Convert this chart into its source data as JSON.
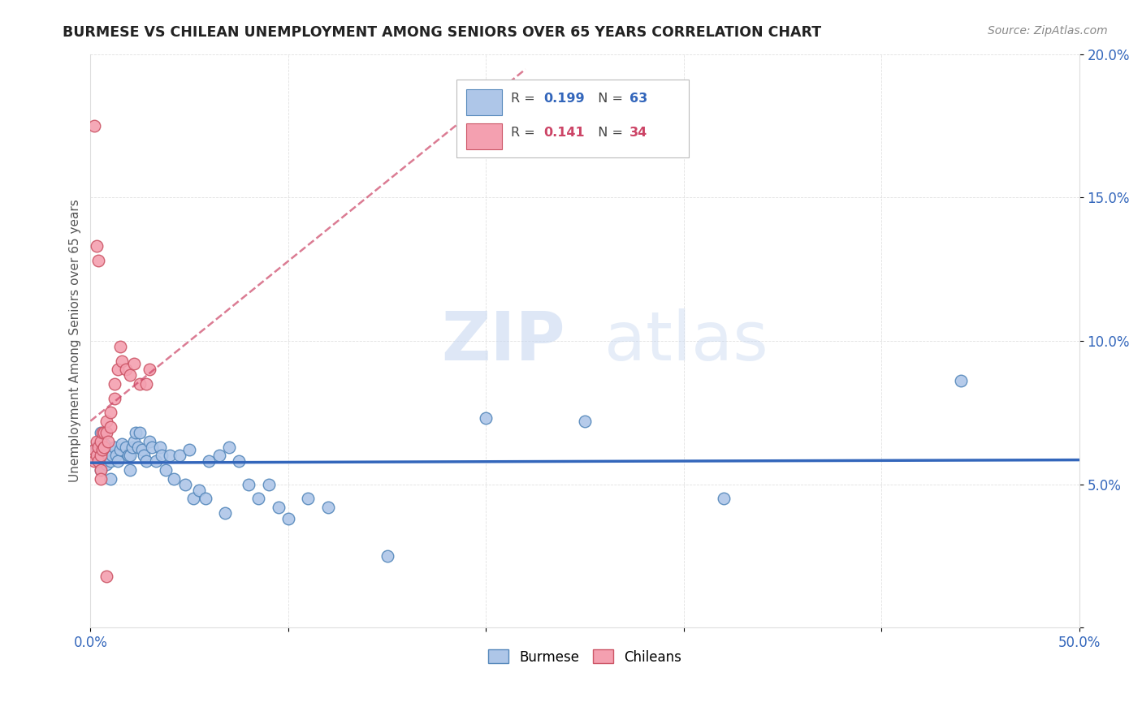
{
  "title": "BURMESE VS CHILEAN UNEMPLOYMENT AMONG SENIORS OVER 65 YEARS CORRELATION CHART",
  "source": "Source: ZipAtlas.com",
  "ylabel": "Unemployment Among Seniors over 65 years",
  "xlim": [
    0.0,
    0.5
  ],
  "ylim": [
    0.0,
    0.2
  ],
  "xticks": [
    0.0,
    0.1,
    0.2,
    0.3,
    0.4,
    0.5
  ],
  "xticklabels": [
    "0.0%",
    "",
    "",
    "",
    "",
    "50.0%"
  ],
  "yticks": [
    0.0,
    0.05,
    0.1,
    0.15,
    0.2
  ],
  "yticklabels": [
    "",
    "5.0%",
    "10.0%",
    "15.0%",
    "20.0%"
  ],
  "burmese_color": "#aec6e8",
  "chilean_color": "#f4a0b0",
  "burmese_edge": "#5588bb",
  "chilean_edge": "#cc5566",
  "line_burmese": "#3366bb",
  "line_chilean": "#cc4466",
  "R_burmese": 0.199,
  "N_burmese": 63,
  "R_chilean": 0.141,
  "N_chilean": 34,
  "watermark_zip": "ZIP",
  "watermark_atlas": "atlas",
  "burmese_x": [
    0.003,
    0.004,
    0.005,
    0.005,
    0.005,
    0.006,
    0.007,
    0.007,
    0.008,
    0.008,
    0.009,
    0.01,
    0.01,
    0.01,
    0.011,
    0.012,
    0.013,
    0.014,
    0.015,
    0.016,
    0.018,
    0.019,
    0.02,
    0.02,
    0.021,
    0.022,
    0.023,
    0.024,
    0.025,
    0.026,
    0.027,
    0.028,
    0.03,
    0.031,
    0.033,
    0.035,
    0.036,
    0.038,
    0.04,
    0.042,
    0.045,
    0.048,
    0.05,
    0.052,
    0.055,
    0.058,
    0.06,
    0.065,
    0.068,
    0.07,
    0.075,
    0.08,
    0.085,
    0.09,
    0.095,
    0.1,
    0.11,
    0.12,
    0.15,
    0.2,
    0.25,
    0.32,
    0.44
  ],
  "burmese_y": [
    0.063,
    0.06,
    0.068,
    0.058,
    0.055,
    0.063,
    0.064,
    0.058,
    0.062,
    0.057,
    0.06,
    0.062,
    0.058,
    0.052,
    0.06,
    0.063,
    0.06,
    0.058,
    0.062,
    0.064,
    0.063,
    0.06,
    0.06,
    0.055,
    0.063,
    0.065,
    0.068,
    0.063,
    0.068,
    0.062,
    0.06,
    0.058,
    0.065,
    0.063,
    0.058,
    0.063,
    0.06,
    0.055,
    0.06,
    0.052,
    0.06,
    0.05,
    0.062,
    0.045,
    0.048,
    0.045,
    0.058,
    0.06,
    0.04,
    0.063,
    0.058,
    0.05,
    0.045,
    0.05,
    0.042,
    0.038,
    0.045,
    0.042,
    0.025,
    0.073,
    0.072,
    0.045,
    0.086
  ],
  "chilean_x": [
    0.002,
    0.002,
    0.003,
    0.003,
    0.004,
    0.004,
    0.005,
    0.005,
    0.005,
    0.005,
    0.006,
    0.006,
    0.007,
    0.007,
    0.008,
    0.008,
    0.009,
    0.01,
    0.01,
    0.012,
    0.012,
    0.014,
    0.015,
    0.016,
    0.018,
    0.02,
    0.022,
    0.025,
    0.028,
    0.03,
    0.002,
    0.003,
    0.004,
    0.008
  ],
  "chilean_y": [
    0.062,
    0.058,
    0.065,
    0.06,
    0.063,
    0.058,
    0.065,
    0.06,
    0.055,
    0.052,
    0.068,
    0.062,
    0.068,
    0.063,
    0.072,
    0.068,
    0.065,
    0.075,
    0.07,
    0.085,
    0.08,
    0.09,
    0.098,
    0.093,
    0.09,
    0.088,
    0.092,
    0.085,
    0.085,
    0.09,
    0.175,
    0.133,
    0.128,
    0.018
  ]
}
